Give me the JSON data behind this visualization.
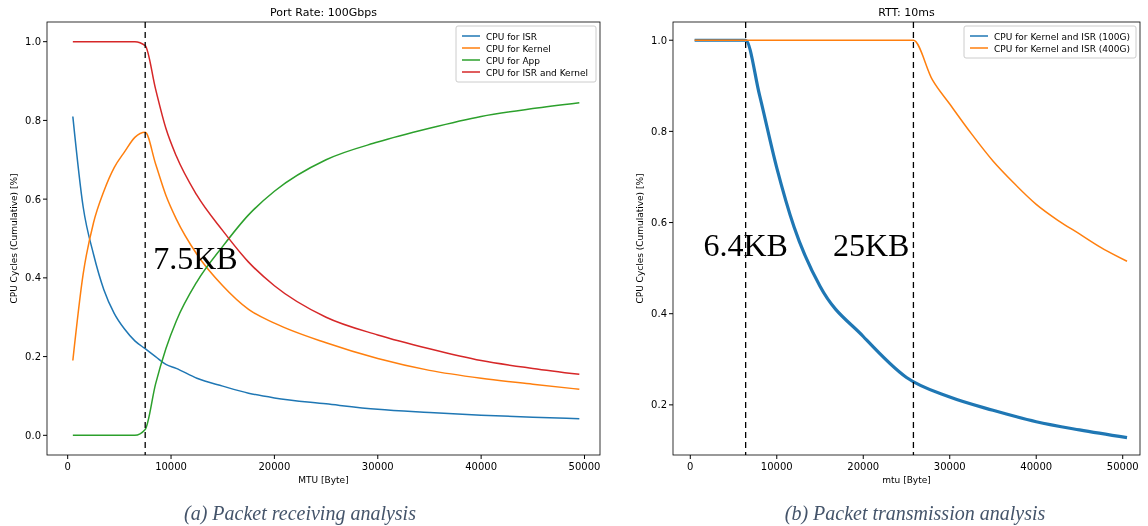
{
  "chart_data": [
    {
      "type": "line",
      "title": "Port Rate: 100Gbps",
      "xlabel": "MTU [Byte]",
      "ylabel": "CPU Cycles (Cumulative) [%]",
      "x": [
        500,
        1500,
        2500,
        3500,
        4500,
        5500,
        6500,
        7500,
        8500,
        9500,
        10500,
        12500,
        15000,
        17500,
        20000,
        25000,
        30000,
        35000,
        40000,
        45000,
        49500
      ],
      "series": [
        {
          "name": "CPU for ISR",
          "color": "#1f77b4",
          "values": [
            0.81,
            0.58,
            0.46,
            0.37,
            0.31,
            0.27,
            0.24,
            0.22,
            0.2,
            0.18,
            0.17,
            0.145,
            0.125,
            0.107,
            0.095,
            0.08,
            0.066,
            0.058,
            0.051,
            0.046,
            0.042
          ]
        },
        {
          "name": "CPU for Kernel",
          "color": "#ff7f0e",
          "values": [
            0.19,
            0.41,
            0.54,
            0.62,
            0.68,
            0.72,
            0.757,
            0.77,
            0.69,
            0.61,
            0.55,
            0.46,
            0.38,
            0.32,
            0.285,
            0.235,
            0.195,
            0.165,
            0.145,
            0.13,
            0.117
          ]
        },
        {
          "name": "CPU for App",
          "color": "#2ca02c",
          "values": [
            0,
            0,
            0,
            0,
            0,
            0,
            0,
            0.015,
            0.13,
            0.22,
            0.29,
            0.39,
            0.48,
            0.56,
            0.62,
            0.7,
            0.745,
            0.78,
            0.81,
            0.83,
            0.845
          ]
        },
        {
          "name": "CPU for ISR and Kernel",
          "color": "#d62728",
          "values": [
            1,
            1,
            1,
            1,
            1,
            1,
            1,
            0.99,
            0.88,
            0.78,
            0.71,
            0.61,
            0.52,
            0.44,
            0.38,
            0.3,
            0.255,
            0.22,
            0.19,
            0.17,
            0.155
          ]
        }
      ],
      "xlim": [
        -2000,
        51500
      ],
      "ylim": [
        -0.05,
        1.05
      ],
      "xticks": [
        0,
        10000,
        20000,
        30000,
        40000,
        50000
      ],
      "yticks": [
        {
          "value": 0,
          "label": "0.0"
        },
        {
          "value": 0.2,
          "label": "0.2"
        },
        {
          "value": 0.4,
          "label": "0.4"
        },
        {
          "value": 0.6,
          "label": "0.6"
        },
        {
          "value": 0.8,
          "label": "0.8"
        },
        {
          "value": 1,
          "label": "1.0"
        }
      ],
      "ref_lines": [
        {
          "axis": "x",
          "value": 7500,
          "color": "#000000",
          "line_style": "dashed"
        }
      ],
      "annotations": [
        {
          "text": "7.5KB",
          "x": 7500,
          "y": 0.45
        },
        "(a) Packet receiving analysis"
      ],
      "legend": "top right",
      "grid": false,
      "marker": "none",
      "line_style": "solid"
    },
    {
      "type": "line",
      "title": "RTT: 10ms",
      "xlabel": "mtu [Byte]",
      "ylabel": "CPU Cycles (Cumulative) [%]",
      "series": [
        {
          "name": "CPU for Kernel and ISR (100G)",
          "color": "#1f77b4",
          "x": [
            500,
            6400,
            8000,
            10000,
            12000,
            15000,
            20000,
            25000,
            30000,
            35000,
            40000,
            45000,
            50500
          ],
          "values": [
            1,
            1,
            0.88,
            0.72,
            0.59,
            0.46,
            0.35,
            0.26,
            0.217,
            0.188,
            0.163,
            0.145,
            0.128
          ]
        },
        {
          "name": "CPU for Kernel and ISR (400G)",
          "color": "#ff7f0e",
          "x": [
            500,
            25800,
            28000,
            30000,
            32500,
            35000,
            37500,
            40000,
            42500,
            45000,
            47500,
            50500
          ],
          "values": [
            1,
            1,
            0.913,
            0.86,
            0.795,
            0.735,
            0.685,
            0.64,
            0.605,
            0.575,
            0.545,
            0.515
          ]
        }
      ],
      "xlim": [
        -2000,
        52000
      ],
      "ylim": [
        0.09,
        1.04
      ],
      "xticks": [
        0,
        10000,
        20000,
        30000,
        40000,
        50000
      ],
      "yticks": [
        0.2,
        0.4,
        0.6,
        0.8,
        {
          "value": 1,
          "label": "1.0"
        }
      ],
      "ref_lines": [
        {
          "axis": "x",
          "value": 6400,
          "color": "#000000",
          "line_style": "dashed"
        },
        {
          "axis": "x",
          "value": 25800,
          "color": "#000000",
          "line_style": "dashed"
        }
      ],
      "annotations": [
        {
          "text": "6.4KB",
          "x": 6400,
          "y": 0.55
        },
        {
          "text": "25KB",
          "x": 25800,
          "y": 0.55
        },
        "(b) Packet transmission analysis"
      ],
      "legend": "top right",
      "grid": false,
      "marker": "none",
      "line_style": "solid"
    }
  ]
}
